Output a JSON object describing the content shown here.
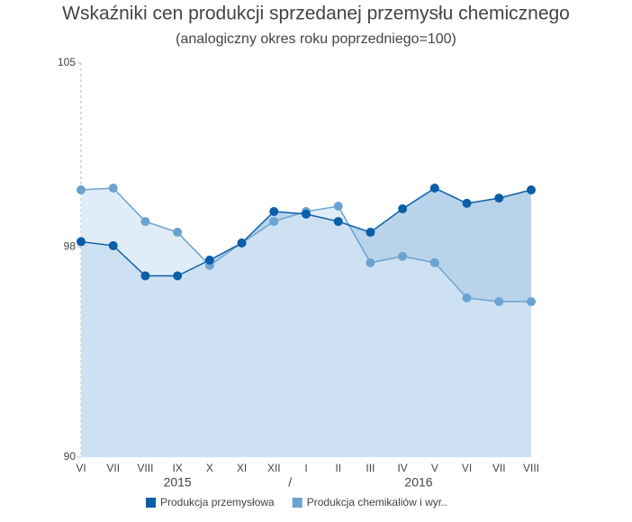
{
  "chart_data": {
    "type": "area",
    "title": "Wskaźniki cen produkcji sprzedanej przemysłu chemicznego",
    "subtitle": "(analogiczny okres roku poprzedniego=100)",
    "categories": [
      "VI",
      "VII",
      "VIII",
      "IX",
      "X",
      "XI",
      "XII",
      "I",
      "II",
      "III",
      "IV",
      "V",
      "VI",
      "VII",
      "VIII"
    ],
    "group_labels": [
      "2015",
      "/",
      "2016"
    ],
    "series": [
      {
        "name": "Produkcja przemysłowa",
        "color": "#0b5ea8",
        "fill": "#b9d3ea",
        "values": [
          98.2,
          98.05,
          96.9,
          96.9,
          97.5,
          98.15,
          99.35,
          99.25,
          98.97,
          98.56,
          99.45,
          100.24,
          99.66,
          99.86,
          100.17
        ]
      },
      {
        "name": "Produkcja chemikaliów i wyr..",
        "color": "#6ba3d0",
        "fill": "#d6e6f4",
        "values": [
          100.17,
          100.24,
          98.97,
          98.56,
          97.3,
          98.15,
          98.97,
          99.35,
          99.55,
          97.4,
          97.64,
          97.4,
          96.06,
          95.92,
          95.92
        ]
      }
    ],
    "ylim": [
      90,
      105
    ],
    "yticks": [
      90,
      98,
      105
    ],
    "grid": false,
    "legend": "bottom"
  }
}
